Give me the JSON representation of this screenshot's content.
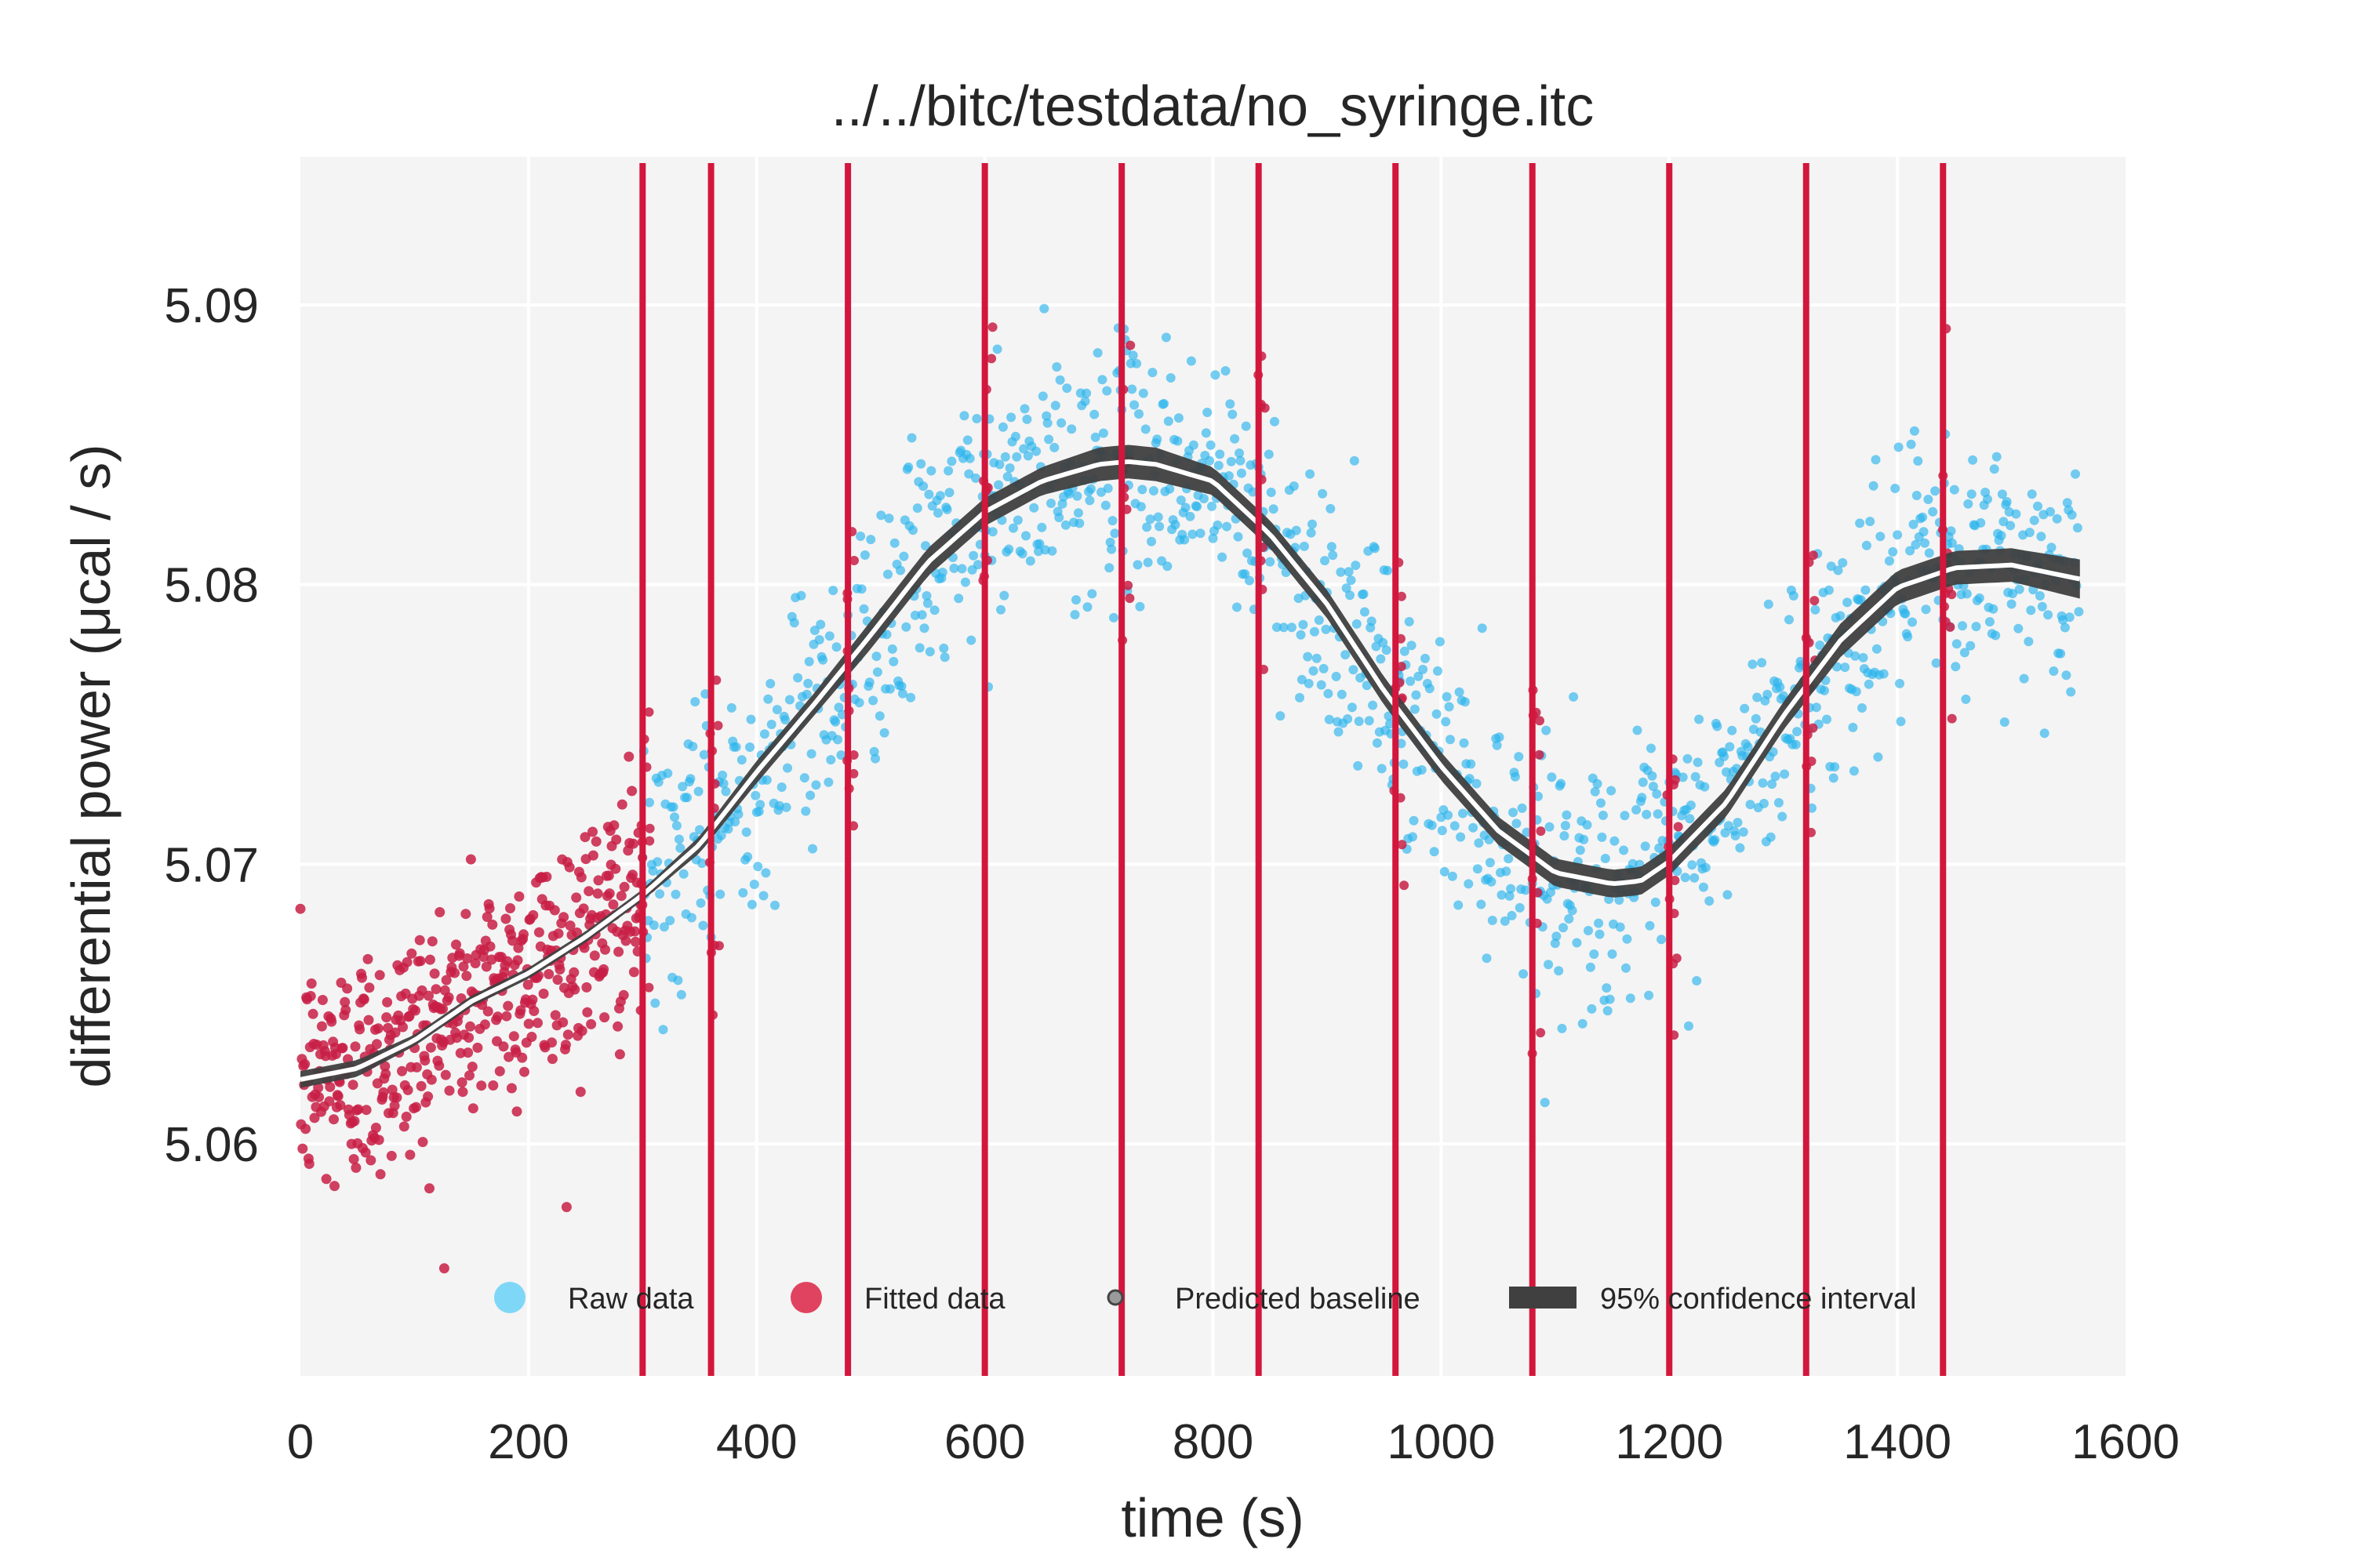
{
  "chart_data": {
    "type": "scatter",
    "title": "../../bitc/testdata/no_syringe.itc",
    "xlabel": "time (s)",
    "ylabel": "differential power (μcal / s)",
    "xlim": [
      0,
      1600
    ],
    "ylim": [
      5.0517,
      5.0953
    ],
    "x_ticks": [
      0,
      200,
      400,
      600,
      800,
      1000,
      1200,
      1400,
      1600
    ],
    "x_tick_labels": [
      "0",
      "200",
      "400",
      "600",
      "800",
      "1000",
      "1200",
      "1400",
      "1600"
    ],
    "y_ticks": [
      5.06,
      5.07,
      5.08,
      5.09
    ],
    "y_tick_labels": [
      "5.06",
      "5.07",
      "5.08",
      "5.09"
    ],
    "grid": true,
    "legend_position": "lower-center",
    "legend": [
      {
        "label": "Raw data",
        "marker": "dot",
        "color": "#7fd7f7"
      },
      {
        "label": "Fitted data",
        "marker": "dot",
        "color": "#e0435f"
      },
      {
        "label": "Predicted baseline",
        "marker": "small-dot",
        "color": "#9a9a9a"
      },
      {
        "label": "95% confidence interval",
        "marker": "rect",
        "color": "#404040"
      }
    ],
    "colors": {
      "raw": "#2bb3ec",
      "fitted": "#c81e45",
      "injection": "#d3163c",
      "band": "#3f3f3f",
      "baseline": "#ffffff",
      "plot_bg": "#f4f4f4",
      "grid": "#ffffff"
    },
    "injection_times": [
      300,
      360,
      480,
      600,
      720,
      840,
      960,
      1080,
      1200,
      1320,
      1440
    ],
    "baseline": {
      "x": [
        0,
        50,
        100,
        150,
        200,
        250,
        300,
        350,
        400,
        450,
        500,
        550,
        600,
        650,
        700,
        725,
        750,
        800,
        850,
        900,
        950,
        1000,
        1050,
        1100,
        1150,
        1175,
        1200,
        1250,
        1300,
        1350,
        1400,
        1450,
        1500,
        1560
      ],
      "y": [
        5.0623,
        5.0627,
        5.0637,
        5.0651,
        5.0661,
        5.0674,
        5.0689,
        5.0707,
        5.0733,
        5.0757,
        5.0782,
        5.0808,
        5.0826,
        5.0837,
        5.0843,
        5.0844,
        5.0843,
        5.0837,
        5.0818,
        5.0793,
        5.0762,
        5.0735,
        5.0712,
        5.0697,
        5.0693,
        5.0694,
        5.0701,
        5.0722,
        5.0753,
        5.078,
        5.0799,
        5.0806,
        5.0807,
        5.0802
      ],
      "ci_halfwidth": [
        0.0003,
        0.0003,
        0.0002,
        0.0002,
        0.0002,
        0.0002,
        0.0002,
        0.0003,
        0.0004,
        0.0004,
        0.0005,
        0.0005,
        0.0005,
        0.0005,
        0.0006,
        0.0006,
        0.0006,
        0.0005,
        0.0005,
        0.0005,
        0.0005,
        0.0005,
        0.0005,
        0.0005,
        0.0005,
        0.0005,
        0.0005,
        0.0005,
        0.0005,
        0.0006,
        0.0006,
        0.0006,
        0.0006,
        0.0007
      ]
    },
    "fitted_series": {
      "x_range": [
        0,
        300
      ],
      "noise_sd": 0.0022
    },
    "raw_series": {
      "x_range": [
        300,
        1560
      ],
      "noise_sd": 0.0022
    }
  }
}
